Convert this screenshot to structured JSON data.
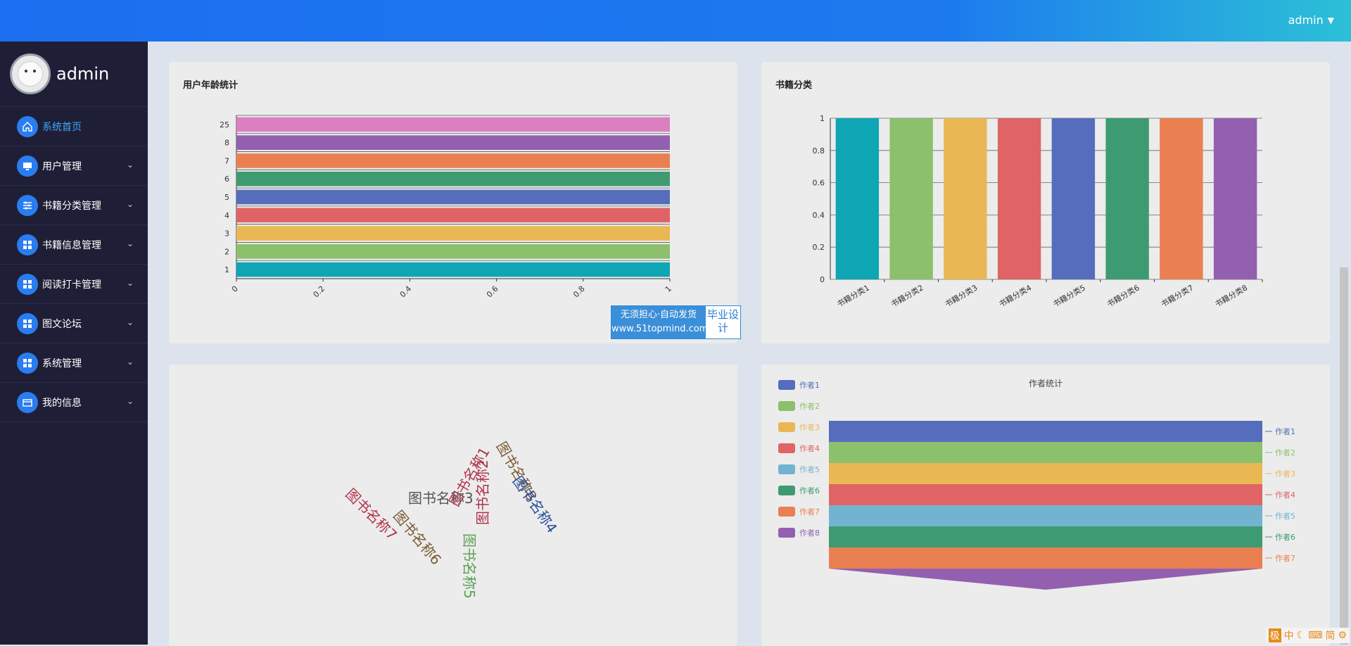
{
  "header": {
    "user": "admin"
  },
  "sidebar": {
    "profile_name": "admin",
    "items": [
      {
        "label": "系统首页",
        "icon": "home-icon"
      },
      {
        "label": "用户管理",
        "icon": "monitor-icon"
      },
      {
        "label": "书籍分类管理",
        "icon": "sliders-icon"
      },
      {
        "label": "书籍信息管理",
        "icon": "grid-icon"
      },
      {
        "label": "阅读打卡管理",
        "icon": "grid-icon"
      },
      {
        "label": "图文论坛",
        "icon": "grid-icon"
      },
      {
        "label": "系统管理",
        "icon": "grid-icon"
      },
      {
        "label": "我的信息",
        "icon": "wallet-icon"
      }
    ]
  },
  "panels": {
    "age_title": "用户年龄统计",
    "category_title": "书籍分类",
    "author_title": "作者统计"
  },
  "watermark": {
    "line1": "无须担心·自动发货",
    "line2": "www.51topmind.com",
    "side": "毕业设计"
  },
  "ime": {
    "items": [
      "极",
      "中",
      "简"
    ]
  },
  "chart_data": [
    {
      "type": "bar",
      "orientation": "horizontal",
      "title": "用户年龄统计",
      "categories": [
        "1",
        "2",
        "3",
        "4",
        "5",
        "6",
        "7",
        "8",
        "25"
      ],
      "values": [
        1,
        1,
        1,
        1,
        1,
        1,
        1,
        1,
        1
      ],
      "xlim": [
        0,
        1
      ],
      "x_ticks": [
        "0",
        "0.2",
        "0.4",
        "0.6",
        "0.8",
        "1"
      ],
      "colors": [
        "#0ea5b5",
        "#8cc06c",
        "#e9b855",
        "#e06465",
        "#556dbc",
        "#3e9b71",
        "#ea8052",
        "#9360b0",
        "#dc7fc0"
      ]
    },
    {
      "type": "bar",
      "title": "书籍分类",
      "categories": [
        "书籍分类1",
        "书籍分类2",
        "书籍分类3",
        "书籍分类4",
        "书籍分类5",
        "书籍分类6",
        "书籍分类7",
        "书籍分类8"
      ],
      "values": [
        1,
        1,
        1,
        1,
        1,
        1,
        1,
        1
      ],
      "ylim": [
        0,
        1
      ],
      "y_ticks": [
        "0",
        "0.2",
        "0.4",
        "0.6",
        "0.8",
        "1"
      ],
      "colors": [
        "#0ea5b5",
        "#8cc06c",
        "#e9b855",
        "#e06465",
        "#556dbc",
        "#3e9b71",
        "#ea8052",
        "#9360b0"
      ]
    },
    {
      "type": "wordcloud",
      "words": [
        {
          "text": "图书名称3",
          "color": "#555555"
        },
        {
          "text": "图书名称7",
          "color": "#b0344d"
        },
        {
          "text": "图书名称6",
          "color": "#7a5b34"
        },
        {
          "text": "图书名称1",
          "color": "#b0344d"
        },
        {
          "text": "图书名称5",
          "color": "#5ea055"
        },
        {
          "text": "图书名称2",
          "color": "#b0344d"
        },
        {
          "text": "图书名称8",
          "color": "#7a5b34"
        },
        {
          "text": "图书名称4",
          "color": "#2a4f9c"
        }
      ]
    },
    {
      "type": "funnel",
      "title": "作者统计",
      "series": [
        {
          "name": "作者1",
          "value": 1,
          "color": "#556dbc"
        },
        {
          "name": "作者2",
          "value": 1,
          "color": "#8cc06c"
        },
        {
          "name": "作者3",
          "value": 1,
          "color": "#e9b855"
        },
        {
          "name": "作者4",
          "value": 1,
          "color": "#e06465"
        },
        {
          "name": "作者5",
          "value": 1,
          "color": "#72b4d0"
        },
        {
          "name": "作者6",
          "value": 1,
          "color": "#3e9b71"
        },
        {
          "name": "作者7",
          "value": 1,
          "color": "#ea8052"
        },
        {
          "name": "作者8",
          "value": 1,
          "color": "#9360b0"
        }
      ],
      "legend": "left"
    }
  ]
}
